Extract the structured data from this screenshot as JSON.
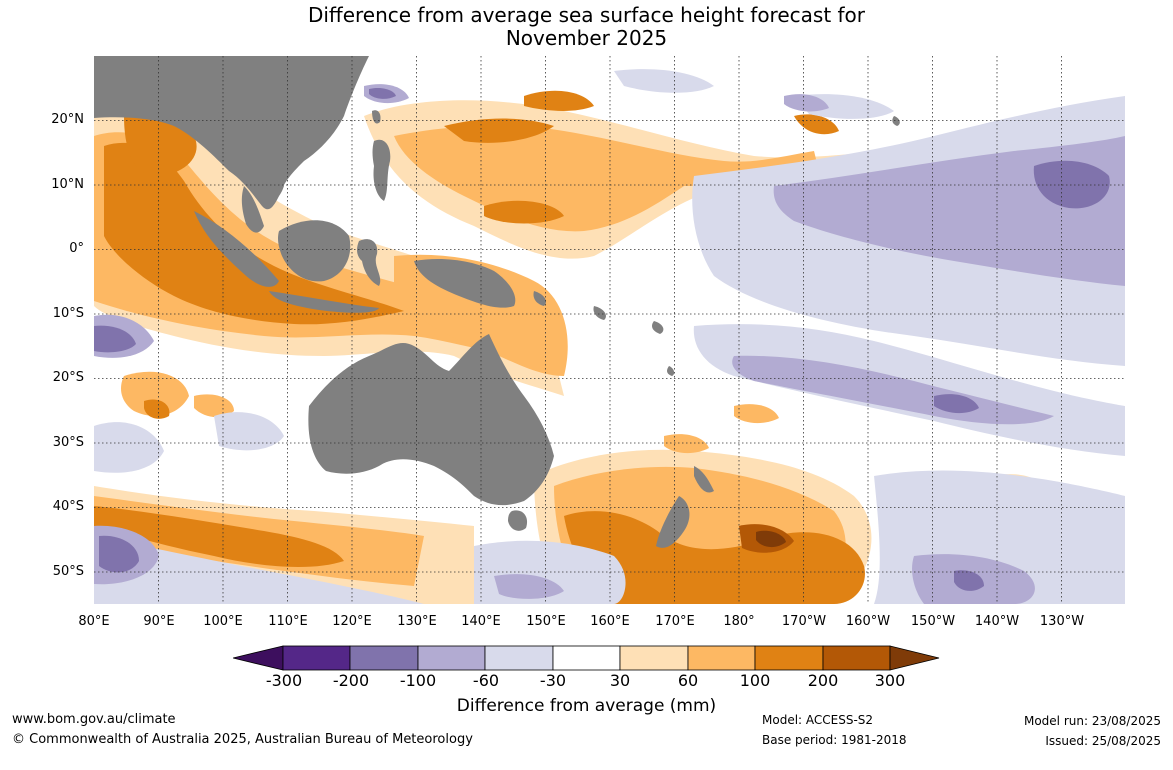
{
  "title": {
    "line1": "Difference from average sea surface height forecast for",
    "line2": "November 2025"
  },
  "map": {
    "latitude_labels": [
      "20°N",
      "10°N",
      "0°",
      "10°S",
      "20°S",
      "30°S",
      "40°S",
      "50°S"
    ],
    "longitude_labels": [
      "80°E",
      "90°E",
      "100°E",
      "110°E",
      "120°E",
      "130°E",
      "140°E",
      "150°E",
      "160°E",
      "170°E",
      "180°",
      "170°W",
      "160°W",
      "150°W",
      "140°W",
      "130°W"
    ],
    "colors": {
      "land": "#808080",
      "ocean_neutral": "#ffffff",
      "grid": "#333333"
    }
  },
  "colorbar": {
    "tick_labels": [
      "-300",
      "-200",
      "-100",
      "-60",
      "-30",
      "30",
      "60",
      "100",
      "200",
      "300"
    ],
    "colors": [
      "#3d0f5e",
      "#542788",
      "#8073ac",
      "#b2abd2",
      "#d8daeb",
      "#ffffff",
      "#fee0b6",
      "#fdb863",
      "#e08214",
      "#b35806",
      "#7f3b08"
    ],
    "label": "Difference from average (mm)"
  },
  "footer": {
    "website": "www.bom.gov.au/climate",
    "copyright": "© Commonwealth of Australia 2025, Australian Bureau of Meteorology",
    "model": "Model: ACCESS-S2",
    "base_period": "Base period: 1981-2018",
    "model_run": "Model run: 23/08/2025",
    "issued": "Issued: 25/08/2025"
  }
}
